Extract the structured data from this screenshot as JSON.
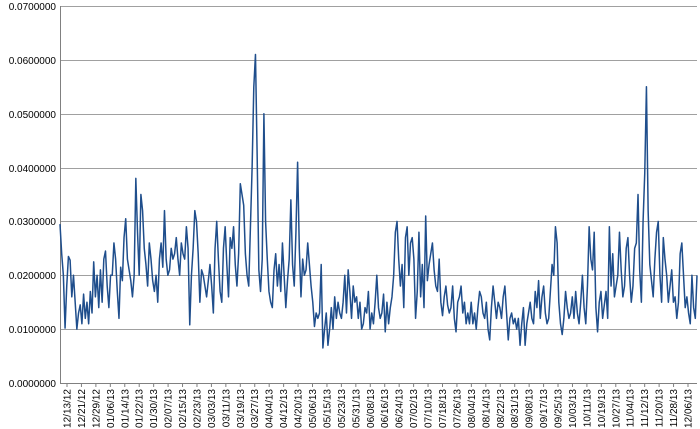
{
  "chart_data": {
    "type": "line",
    "title": "",
    "xlabel": "",
    "ylabel": "",
    "ylim": [
      0,
      0.07
    ],
    "ytick_labels": [
      "0.0000000",
      "0.0100000",
      "0.0200000",
      "0.0300000",
      "0.0400000",
      "0.0500000",
      "0.0600000",
      "0.0700000"
    ],
    "yticks": [
      0,
      0.01,
      0.02,
      0.03,
      0.04,
      0.05,
      0.06,
      0.07
    ],
    "xtick_labels": [
      "12/13/12",
      "12/21/12",
      "12/29/12",
      "01/06/13",
      "01/14/13",
      "01/22/13",
      "01/30/13",
      "02/07/13",
      "02/15/13",
      "02/23/13",
      "03/03/13",
      "03/11/13",
      "03/19/13",
      "03/27/13",
      "04/04/13",
      "04/12/13",
      "04/20/13",
      "05/06/13",
      "05/15/13",
      "05/23/13",
      "05/31/13",
      "06/08/13",
      "06/16/13",
      "06/24/13",
      "07/02/13",
      "07/10/13",
      "07/18/13",
      "07/26/13",
      "08/04/13",
      "08/14/13",
      "08/22/13",
      "08/31/13",
      "09/08/13",
      "09/17/13",
      "09/25/13",
      "10/03/13",
      "10/11/13",
      "10/19/13",
      "10/27/13",
      "11/04/13",
      "11/12/13",
      "11/20/13",
      "11/28/13",
      "12/06/13"
    ],
    "grid": true,
    "legend": "none",
    "line_color": "#1f4e8c",
    "series": [
      {
        "values": [
          0.0295,
          0.024,
          0.02,
          0.0102,
          0.018,
          0.0235,
          0.0228,
          0.016,
          0.02,
          0.015,
          0.01,
          0.013,
          0.0145,
          0.011,
          0.0165,
          0.012,
          0.015,
          0.011,
          0.017,
          0.013,
          0.0225,
          0.016,
          0.02,
          0.014,
          0.021,
          0.015,
          0.023,
          0.0245,
          0.018,
          0.014,
          0.02,
          0.02,
          0.026,
          0.023,
          0.017,
          0.012,
          0.0215,
          0.019,
          0.027,
          0.0305,
          0.023,
          0.021,
          0.019,
          0.016,
          0.02,
          0.038,
          0.028,
          0.02,
          0.035,
          0.032,
          0.025,
          0.022,
          0.018,
          0.026,
          0.023,
          0.019,
          0.017,
          0.02,
          0.015,
          0.023,
          0.026,
          0.0215,
          0.032,
          0.023,
          0.02,
          0.021,
          0.025,
          0.023,
          0.024,
          0.027,
          0.023,
          0.02,
          0.026,
          0.024,
          0.023,
          0.029,
          0.025,
          0.0108,
          0.02,
          0.025,
          0.032,
          0.03,
          0.024,
          0.015,
          0.021,
          0.02,
          0.018,
          0.016,
          0.019,
          0.022,
          0.018,
          0.013,
          0.025,
          0.03,
          0.023,
          0.017,
          0.015,
          0.025,
          0.029,
          0.022,
          0.016,
          0.027,
          0.025,
          0.029,
          0.022,
          0.018,
          0.024,
          0.037,
          0.035,
          0.033,
          0.024,
          0.02,
          0.018,
          0.029,
          0.04,
          0.055,
          0.061,
          0.042,
          0.021,
          0.017,
          0.023,
          0.05,
          0.03,
          0.023,
          0.017,
          0.015,
          0.014,
          0.021,
          0.024,
          0.018,
          0.022,
          0.017,
          0.026,
          0.02,
          0.014,
          0.019,
          0.023,
          0.034,
          0.022,
          0.018,
          0.028,
          0.041,
          0.025,
          0.016,
          0.023,
          0.02,
          0.021,
          0.026,
          0.022,
          0.018,
          0.015,
          0.0105,
          0.013,
          0.012,
          0.013,
          0.022,
          0.0065,
          0.01,
          0.013,
          0.007,
          0.01,
          0.014,
          0.01,
          0.016,
          0.012,
          0.015,
          0.013,
          0.012,
          0.015,
          0.02,
          0.013,
          0.021,
          0.017,
          0.012,
          0.018,
          0.015,
          0.016,
          0.012,
          0.015,
          0.01,
          0.011,
          0.014,
          0.013,
          0.017,
          0.01,
          0.013,
          0.011,
          0.015,
          0.02,
          0.014,
          0.012,
          0.013,
          0.0165,
          0.0095,
          0.015,
          0.011,
          0.014,
          0.016,
          0.02,
          0.028,
          0.03,
          0.023,
          0.018,
          0.022,
          0.014,
          0.027,
          0.029,
          0.02,
          0.026,
          0.027,
          0.023,
          0.012,
          0.017,
          0.028,
          0.016,
          0.022,
          0.014,
          0.031,
          0.019,
          0.022,
          0.024,
          0.026,
          0.021,
          0.018,
          0.017,
          0.023,
          0.015,
          0.0125,
          0.016,
          0.018,
          0.0145,
          0.013,
          0.014,
          0.018,
          0.012,
          0.0095,
          0.015,
          0.016,
          0.018,
          0.013,
          0.015,
          0.011,
          0.013,
          0.011,
          0.015,
          0.011,
          0.013,
          0.01,
          0.014,
          0.017,
          0.016,
          0.013,
          0.012,
          0.015,
          0.01,
          0.008,
          0.014,
          0.018,
          0.015,
          0.012,
          0.015,
          0.014,
          0.012,
          0.016,
          0.018,
          0.013,
          0.008,
          0.012,
          0.013,
          0.011,
          0.012,
          0.01,
          0.012,
          0.007,
          0.011,
          0.014,
          0.007,
          0.011,
          0.013,
          0.015,
          0.012,
          0.011,
          0.017,
          0.014,
          0.019,
          0.012,
          0.016,
          0.018,
          0.013,
          0.011,
          0.012,
          0.017,
          0.022,
          0.02,
          0.029,
          0.026,
          0.015,
          0.011,
          0.009,
          0.012,
          0.017,
          0.014,
          0.012,
          0.013,
          0.016,
          0.012,
          0.017,
          0.013,
          0.011,
          0.015,
          0.02,
          0.014,
          0.011,
          0.018,
          0.029,
          0.023,
          0.021,
          0.028,
          0.014,
          0.0095,
          0.015,
          0.017,
          0.012,
          0.0145,
          0.017,
          0.012,
          0.029,
          0.018,
          0.024,
          0.016,
          0.018,
          0.02,
          0.028,
          0.021,
          0.016,
          0.018,
          0.025,
          0.027,
          0.02,
          0.015,
          0.018,
          0.025,
          0.026,
          0.035,
          0.021,
          0.015,
          0.03,
          0.039,
          0.055,
          0.032,
          0.022,
          0.019,
          0.016,
          0.023,
          0.028,
          0.03,
          0.02,
          0.015,
          0.027,
          0.023,
          0.02,
          0.015,
          0.018,
          0.021,
          0.015,
          0.016,
          0.012,
          0.015,
          0.024,
          0.026,
          0.02,
          0.014,
          0.016,
          0.013,
          0.011,
          0.02,
          0.014,
          0.012,
          0.02
        ]
      }
    ]
  }
}
